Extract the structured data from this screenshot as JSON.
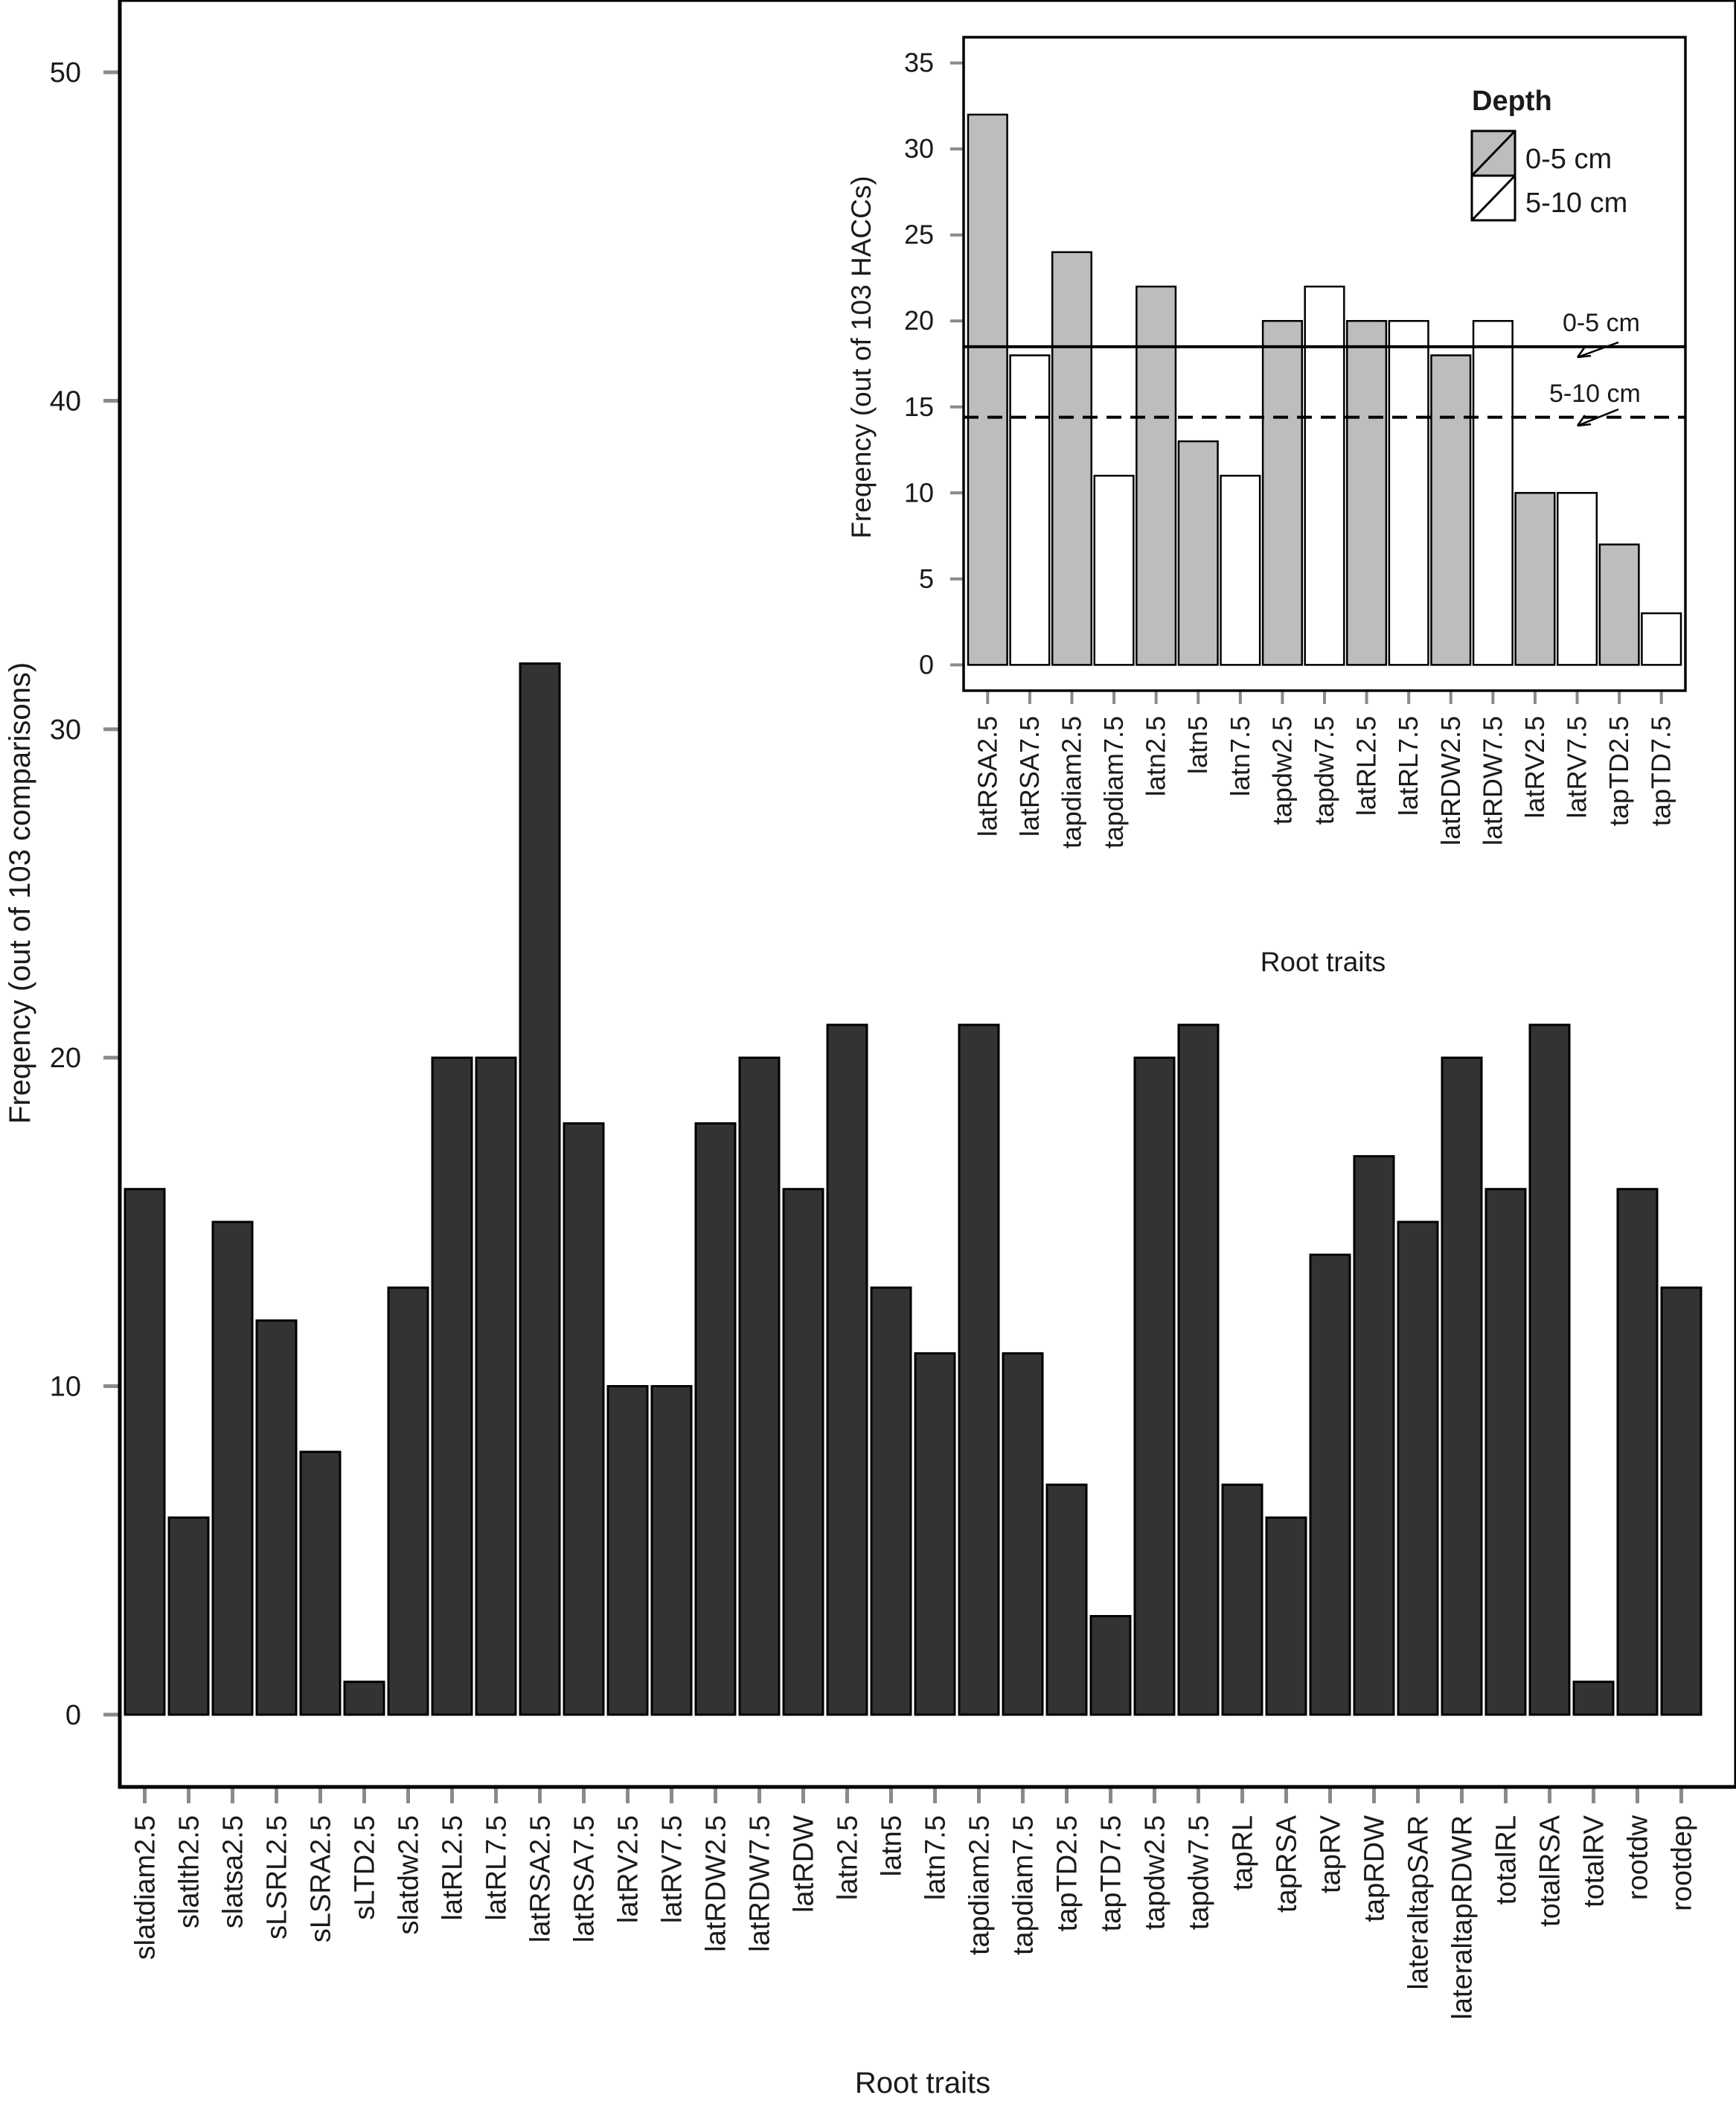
{
  "chart_data": [
    {
      "type": "bar",
      "title": "",
      "xlabel": "Root traits",
      "ylabel": "Freqency (out of 103 comparisons)",
      "ylim": [
        -2.2,
        52.2
      ],
      "yticks": [
        0,
        10,
        20,
        30,
        40,
        50
      ],
      "bar_color": "#333333",
      "categories": [
        "slatdiam2.5",
        "slatlth2.5",
        "slatsa2.5",
        "sLSRL2.5",
        "sLSRA2.5",
        "sLTD2.5",
        "slatdw2.5",
        "latRL2.5",
        "latRL7.5",
        "latRSA2.5",
        "latRSA7.5",
        "latRV2.5",
        "latRV7.5",
        "latRDW2.5",
        "latRDW7.5",
        "latRDW",
        "latn2.5",
        "latn5",
        "latn7.5",
        "tapdiam2.5",
        "tapdiam7.5",
        "tapTD2.5",
        "tapTD7.5",
        "tapdw2.5",
        "tapdw7.5",
        "tapRL",
        "tapRSA",
        "tapRV",
        "tapRDW",
        "lateraltapSAR",
        "lateraltapRDWR",
        "totalRL",
        "totalRSA",
        "totalRV",
        "rootdw",
        "rootdep"
      ],
      "values": [
        16,
        6,
        15,
        12,
        8,
        1,
        13,
        20,
        20,
        32,
        18,
        10,
        10,
        18,
        20,
        16,
        21,
        13,
        11,
        21,
        11,
        7,
        3,
        20,
        21,
        7,
        6,
        14,
        17,
        15,
        20,
        16,
        21,
        1,
        16,
        13
      ]
    },
    {
      "type": "bar",
      "title": "",
      "xlabel": "Root traits",
      "ylabel": "Freqency (out of 103 HACCs)",
      "ylim": [
        -1.5,
        36.5
      ],
      "yticks": [
        0,
        5,
        10,
        15,
        20,
        25,
        30,
        35
      ],
      "categories": [
        "latRSA2.5",
        "latRSA7.5",
        "tapdiam2.5",
        "tapdiam7.5",
        "latn2.5",
        "latn5",
        "latn7.5",
        "tapdw2.5",
        "tapdw7.5",
        "latRL2.5",
        "latRL7.5",
        "latRDW2.5",
        "latRDW7.5",
        "latRV2.5",
        "latRV7.5",
        "tapTD2.5",
        "tapTD7.5"
      ],
      "values": [
        32,
        18,
        24,
        11,
        22,
        13,
        11,
        20,
        22,
        20,
        20,
        18,
        20,
        10,
        10,
        7,
        3
      ],
      "depth": [
        "0-5 cm",
        "5-10 cm",
        "0-5 cm",
        "5-10 cm",
        "0-5 cm",
        "0-5 cm",
        "5-10 cm",
        "0-5 cm",
        "5-10 cm",
        "0-5 cm",
        "5-10 cm",
        "0-5 cm",
        "5-10 cm",
        "0-5 cm",
        "5-10 cm",
        "0-5 cm",
        "5-10 cm"
      ],
      "legend": {
        "title": "Depth",
        "position": "top-right",
        "entries": [
          {
            "label": "0-5 cm",
            "color": "#bdbdbd"
          },
          {
            "label": "5-10 cm",
            "color": "#ffffff"
          }
        ]
      },
      "reference_lines": [
        {
          "label": "0-5 cm",
          "value": 18.5,
          "style": "solid"
        },
        {
          "label": "5-10 cm",
          "value": 14.4,
          "style": "dashed"
        }
      ]
    }
  ]
}
